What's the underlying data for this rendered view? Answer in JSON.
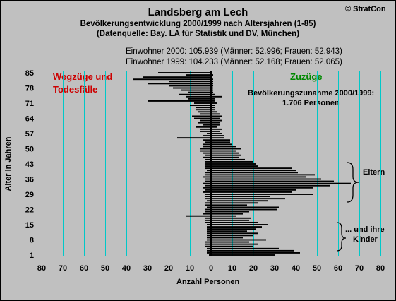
{
  "header": {
    "title": "Landsberg am Lech",
    "subtitle_1": "Bevölkerungsentwicklung 2000/1999  nach Altersjahren (1-85)",
    "subtitle_2": "(Datenquelle: Bay. LA für Statistik und DV, München)",
    "copyright": "© StratCon"
  },
  "info": {
    "line_2000": "Einwohner 2000: 105.939  (Männer: 52.996; Frauen: 52.943)",
    "line_1999": "Einwohner 1999: 104.233  (Männer: 52.168; Frauen: 52.065)"
  },
  "annotations": {
    "left_label": [
      "Wegzüge und",
      "Todesfälle"
    ],
    "right_label": "Zuzüge",
    "increase": [
      "Bevölkerungszunahme 2000/1999:",
      "1.706 Personen"
    ],
    "parents": "Eltern",
    "children": [
      "... und ihre",
      "Kinder"
    ]
  },
  "colors": {
    "background": "#c0c0c0",
    "grid": "#00c8c8",
    "bars": "#000000",
    "left_label": "#cc0000",
    "right_label": "#008800"
  },
  "chart_data": {
    "type": "bar",
    "orientation": "horizontal",
    "title": "Landsberg am Lech",
    "xlabel": "Anzahl Personen",
    "ylabel": "Alter in Jahren",
    "xlim": [
      -80,
      80
    ],
    "ylim": [
      1,
      85
    ],
    "x_ticks": [
      80,
      70,
      60,
      50,
      40,
      30,
      20,
      10,
      0,
      10,
      20,
      30,
      40,
      50,
      60,
      70,
      80
    ],
    "y_ticks": [
      1,
      8,
      15,
      22,
      29,
      36,
      43,
      50,
      57,
      64,
      71,
      78,
      85
    ],
    "grid": "vertical",
    "ages": [
      1,
      2,
      3,
      4,
      5,
      6,
      7,
      8,
      9,
      10,
      11,
      12,
      13,
      14,
      15,
      16,
      17,
      18,
      19,
      20,
      21,
      22,
      23,
      24,
      25,
      26,
      27,
      28,
      29,
      30,
      31,
      32,
      33,
      34,
      35,
      36,
      37,
      38,
      39,
      40,
      41,
      42,
      43,
      44,
      45,
      46,
      47,
      48,
      49,
      50,
      51,
      52,
      53,
      54,
      55,
      56,
      57,
      58,
      59,
      60,
      61,
      62,
      63,
      64,
      65,
      66,
      67,
      68,
      69,
      70,
      71,
      72,
      73,
      74,
      75,
      76,
      77,
      78,
      79,
      80,
      81,
      82,
      83,
      84,
      85
    ],
    "series": [
      {
        "name": "Zuzüge",
        "values": [
          30,
          42,
          39,
          32,
          20,
          22,
          18,
          26,
          15,
          20,
          22,
          17,
          21,
          24,
          27,
          22,
          18,
          19,
          12,
          15,
          18,
          31,
          32,
          17,
          22,
          27,
          35,
          28,
          48,
          38,
          40,
          48,
          56,
          66,
          58,
          52,
          45,
          49,
          41,
          40,
          38,
          22,
          21,
          20,
          16,
          13,
          14,
          13,
          12,
          14,
          12,
          10,
          9,
          9,
          6,
          6,
          5,
          4,
          5,
          3,
          4,
          4,
          5,
          4,
          5,
          4,
          3,
          2,
          2,
          2,
          3,
          2,
          2,
          5,
          2,
          1,
          1,
          1,
          1,
          1,
          1,
          1,
          0,
          1,
          0
        ]
      },
      {
        "name": "Wegzüge und Todesfälle",
        "values": [
          -1,
          -2,
          -2,
          -2,
          -3,
          -3,
          -3,
          -2,
          -2,
          -2,
          -2,
          -2,
          -2,
          -2,
          -2,
          -3,
          -3,
          -3,
          -12,
          -4,
          -3,
          -3,
          -2,
          -3,
          -3,
          -2,
          -3,
          -3,
          -3,
          -4,
          -3,
          -4,
          -3,
          -4,
          -3,
          -3,
          -4,
          -3,
          -3,
          -2,
          -3,
          -3,
          -3,
          -3,
          -3,
          -4,
          -3,
          -4,
          -5,
          -5,
          -4,
          -4,
          -3,
          -4,
          -16,
          -4,
          -2,
          -5,
          -5,
          -7,
          -4,
          -6,
          -5,
          -8,
          -9,
          -5,
          -6,
          -7,
          -7,
          -10,
          -8,
          -30,
          -11,
          -12,
          -15,
          -11,
          -14,
          -18,
          -20,
          -30,
          -20,
          -37,
          -32,
          -12,
          -25
        ]
      }
    ]
  }
}
